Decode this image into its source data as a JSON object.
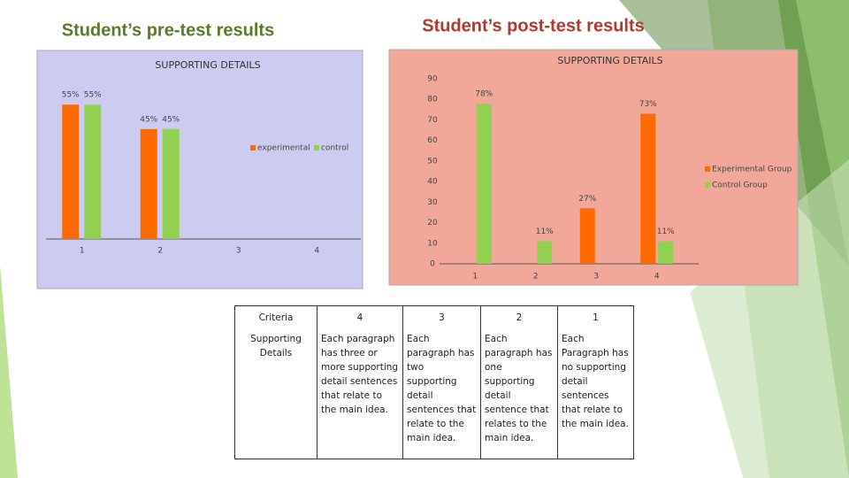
{
  "chart_data": [
    {
      "type": "bar",
      "heading": "Student’s pre-test results",
      "title": "SUPPORTING DETAILS",
      "categories": [
        "1",
        "2",
        "3",
        "4"
      ],
      "series": [
        {
          "name": "experimental",
          "color": "#ff6a00",
          "values": [
            55,
            45,
            null,
            null
          ],
          "value_labels": [
            "55%",
            "45%",
            null,
            null
          ]
        },
        {
          "name": "control",
          "color": "#92d050",
          "values": [
            55,
            45,
            null,
            null
          ],
          "value_labels": [
            "55%",
            "45%",
            null,
            null
          ]
        }
      ],
      "background": "#ccccf0",
      "legend": "center"
    },
    {
      "type": "bar",
      "heading": "Student’s post-test results",
      "title": "SUPPORTING DETAILS",
      "categories": [
        "1",
        "2",
        "3",
        "4"
      ],
      "series": [
        {
          "name": "Experimental Group",
          "color": "#ff6a00",
          "values": [
            null,
            null,
            27,
            73
          ],
          "value_labels": [
            null,
            null,
            "27%",
            "73%"
          ]
        },
        {
          "name": "Control Group",
          "color": "#92d050",
          "values": [
            78,
            11,
            null,
            11
          ],
          "value_labels": [
            "78%",
            "11%",
            null,
            "11%"
          ]
        }
      ],
      "ylim": [
        0,
        90
      ],
      "yticks": [
        0,
        10,
        20,
        30,
        40,
        50,
        60,
        70,
        80,
        90
      ],
      "background": "#f2a899",
      "legend": "right"
    }
  ],
  "table": {
    "header": [
      "Criteria",
      "4",
      "3",
      "2",
      "1"
    ],
    "rows": [
      [
        "Supporting Details",
        "Each paragraph has three or more supporting detail sentences that relate to the main idea.",
        "Each paragraph has two supporting detail sentences that relate to the main idea.",
        "Each paragraph has one supporting detail sentence that relates to the main idea.",
        "Each Paragraph has no supporting detail sentences that relate to the main idea."
      ]
    ]
  }
}
